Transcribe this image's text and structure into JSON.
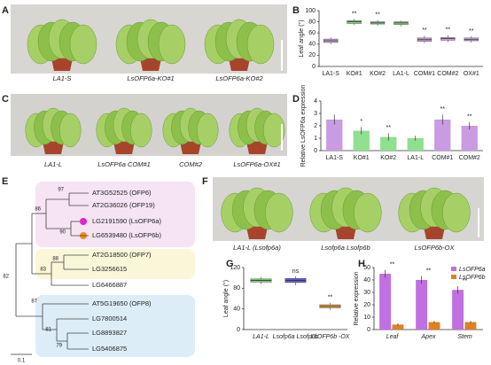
{
  "panel_labels": [
    "A",
    "B",
    "C",
    "D",
    "E",
    "F",
    "G",
    "H"
  ],
  "photos_a": {
    "captions": [
      "LA1-S",
      "LsOFP6a-KO#1",
      "LsOFP6a-KO#2"
    ]
  },
  "photos_c": {
    "captions": [
      "LA1-L",
      "LsOFP6a COM#1",
      "COM#2",
      "LsOFP6a-OX#1"
    ]
  },
  "photos_f": {
    "captions": [
      "LA1-L (Lsofp6a)",
      "Lsofp6a Lsofp6b",
      "LsOFP6b-OX"
    ]
  },
  "tree": {
    "leaves": [
      "AT3G52525 (OFP6)",
      "AT2G36026 (OFP19)",
      "LG2191590 (LsOFP6a)",
      "LG6539480 (LsOFP6b)",
      "AT2G18500 (OFP7)",
      "LG3256615",
      "LG6466887",
      "AT5G19650 (OFP8)",
      "LG7800514",
      "LG8893827",
      "LG5406875"
    ],
    "bootstrap": [
      97,
      90,
      86,
      88,
      83,
      79,
      81,
      87,
      82
    ],
    "scale": "0.1"
  },
  "chart_data": [
    {
      "type": "box",
      "ylabel": "Leaf angle (°)",
      "categories": [
        "LA1-S",
        "KO#1",
        "KO#2",
        "LA1-L",
        "COM#1",
        "COM#2",
        "OX#1"
      ],
      "boxes": [
        {
          "min": 40,
          "q1": 43,
          "median": 46,
          "q3": 49,
          "max": 52
        },
        {
          "min": 74,
          "q1": 77,
          "median": 80,
          "q3": 82,
          "max": 85
        },
        {
          "min": 73,
          "q1": 76,
          "median": 78,
          "q3": 80,
          "max": 83
        },
        {
          "min": 72,
          "q1": 75,
          "median": 78,
          "q3": 80,
          "max": 82
        },
        {
          "min": 42,
          "q1": 45,
          "median": 48,
          "q3": 51,
          "max": 55
        },
        {
          "min": 44,
          "q1": 47,
          "median": 50,
          "q3": 52,
          "max": 56
        },
        {
          "min": 43,
          "q1": 46,
          "median": 48,
          "q3": 51,
          "max": 54
        }
      ],
      "colors": [
        "#c99be2",
        "#7fd87f",
        "#7fd87f",
        "#7fd87f",
        "#c99be2",
        "#c99be2",
        "#c99be2"
      ],
      "annotations": [
        null,
        "**",
        "**",
        null,
        "**",
        "**",
        "**"
      ],
      "ylim": [
        0,
        100
      ],
      "yticks": [
        0,
        20,
        40,
        60,
        80,
        100
      ]
    },
    {
      "type": "bar",
      "ylabel": "Relative LsOFP6a expression",
      "categories": [
        "LA1-S",
        "KO#1",
        "KO#2",
        "LA1-L",
        "COM#1",
        "COM#2"
      ],
      "values": [
        2.5,
        1.6,
        1.1,
        1.0,
        2.5,
        2.0
      ],
      "errors": [
        0.4,
        0.3,
        0.3,
        0.2,
        0.4,
        0.3
      ],
      "colors": [
        "#c99be2",
        "#8fe08f",
        "#8fe08f",
        "#8fe08f",
        "#c99be2",
        "#c99be2"
      ],
      "annotations": [
        null,
        "*",
        "**",
        null,
        "**",
        "**"
      ],
      "ylim": [
        0,
        4
      ],
      "yticks": [
        0,
        1,
        2,
        3,
        4
      ]
    },
    {
      "type": "box",
      "ylabel": "Leaf angle (°)",
      "categories": [
        "LA1-L",
        "Lsofp6a Lsofp6b",
        "LsOFP6b -OX"
      ],
      "boxes": [
        {
          "min": 88,
          "q1": 92,
          "median": 95,
          "q3": 98,
          "max": 102
        },
        {
          "min": 86,
          "q1": 91,
          "median": 95,
          "q3": 99,
          "max": 103
        },
        {
          "min": 38,
          "q1": 42,
          "median": 45,
          "q3": 48,
          "max": 52
        }
      ],
      "colors": [
        "#6fd86f",
        "#5a5ad8",
        "#f0a030"
      ],
      "annotations": [
        null,
        "ns",
        "**"
      ],
      "ylim": [
        0,
        120
      ],
      "yticks": [
        0,
        40,
        80,
        120
      ]
    },
    {
      "type": "groupedbar",
      "ylabel": "Relative expression",
      "categories": [
        "Leaf",
        "Apex",
        "Stem"
      ],
      "series": [
        {
          "name": "LsOFP6a",
          "color": "#c070e0",
          "values": [
            45,
            40,
            32
          ],
          "errors": [
            3,
            3,
            3
          ]
        },
        {
          "name": "LsOFP6b",
          "color": "#e08020",
          "values": [
            4,
            6,
            6
          ],
          "errors": [
            1,
            1,
            1
          ]
        }
      ],
      "annotations": [
        "**",
        "**",
        "**"
      ],
      "ylim": [
        0,
        50
      ],
      "yticks": [
        0,
        10,
        20,
        30,
        40,
        50
      ]
    }
  ]
}
